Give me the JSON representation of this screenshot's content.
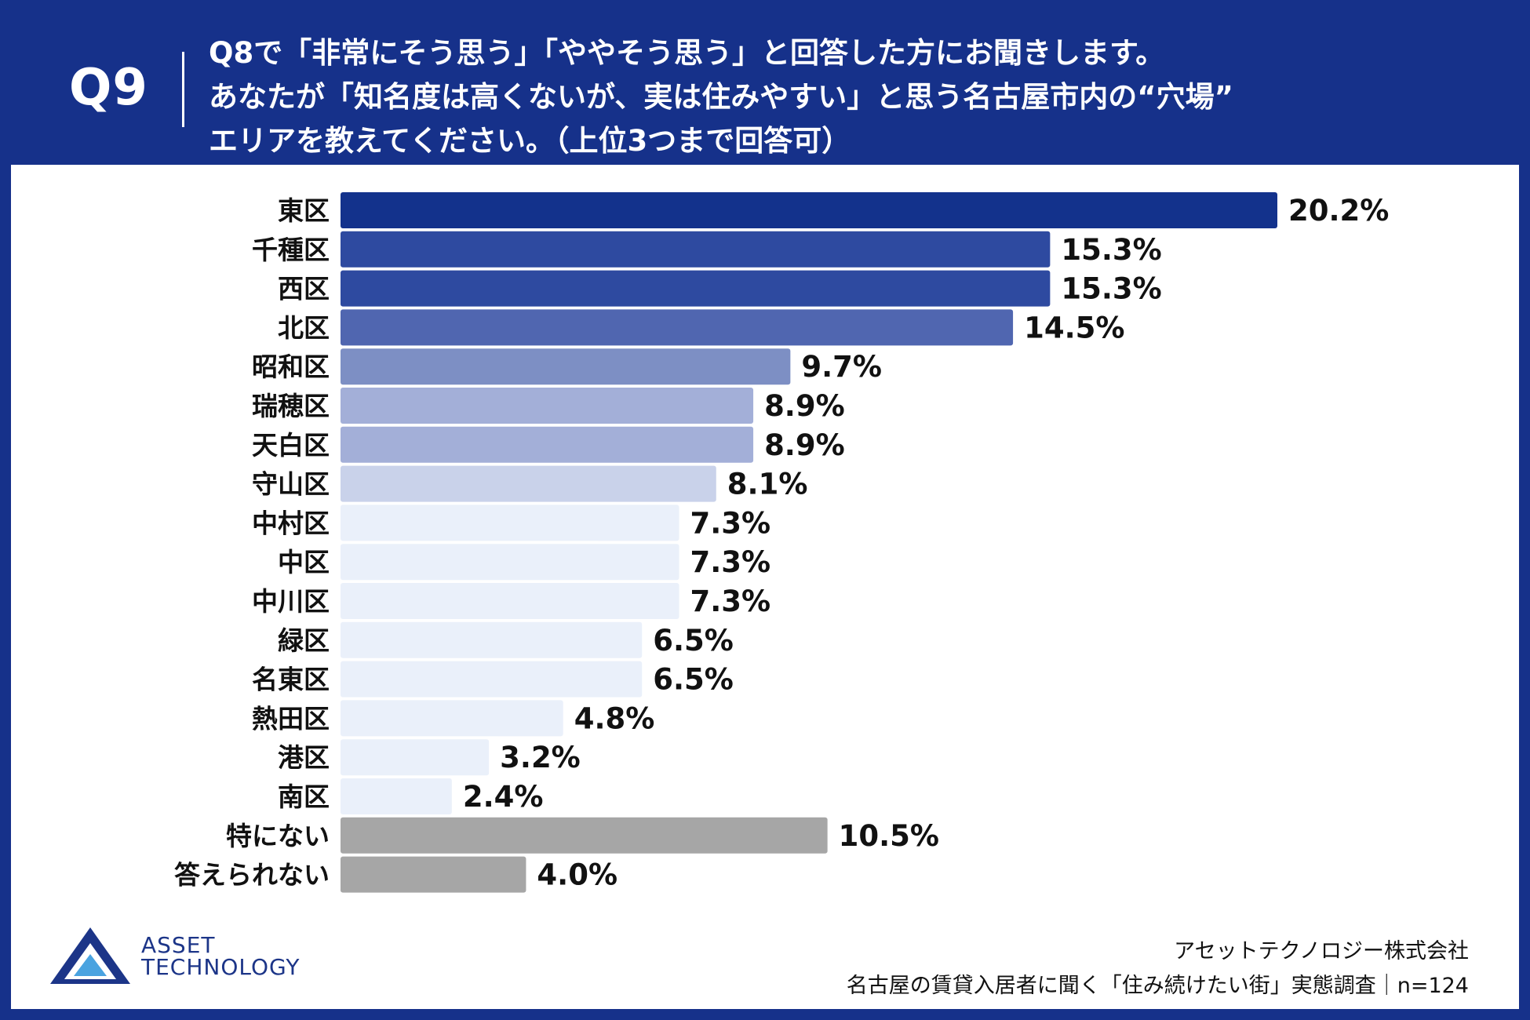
{
  "header": {
    "q_label": "Q9",
    "question_lines": [
      "Q8で「非常にそう思う」「ややそう思う」と回答した方にお聞きします。",
      "あなたが「知名度は高くないが、実は住みやすい」と思う名古屋市内の“穴場”",
      "エリアを教えてください。（上位3つまで回答可）"
    ]
  },
  "chart_data": {
    "type": "bar",
    "orientation": "horizontal",
    "categories": [
      "東区",
      "千種区",
      "西区",
      "北区",
      "昭和区",
      "瑞穂区",
      "天白区",
      "守山区",
      "中村区",
      "中区",
      "中川区",
      "緑区",
      "名東区",
      "熱田区",
      "港区",
      "南区",
      "特にない",
      "答えられない"
    ],
    "values": [
      20.2,
      15.3,
      15.3,
      14.5,
      9.7,
      8.9,
      8.9,
      8.1,
      7.3,
      7.3,
      7.3,
      6.5,
      6.5,
      4.8,
      3.2,
      2.4,
      10.5,
      4.0
    ],
    "value_labels": [
      "20.2%",
      "15.3%",
      "15.3%",
      "14.5%",
      "9.7%",
      "8.9%",
      "8.9%",
      "8.1%",
      "7.3%",
      "7.3%",
      "7.3%",
      "6.5%",
      "6.5%",
      "4.8%",
      "3.2%",
      "2.4%",
      "10.5%",
      "4.0%"
    ],
    "bar_colors": [
      "#13328c",
      "#2e4aa0",
      "#2e4aa0",
      "#5066b0",
      "#7d8fc4",
      "#a3afd8",
      "#a3afd8",
      "#c9d2ea",
      "#eaf0fa",
      "#eaf0fa",
      "#eaf0fa",
      "#eaf0fa",
      "#eaf0fa",
      "#eaf0fa",
      "#eaf0fa",
      "#eaf0fa",
      "#a6a6a6",
      "#a6a6a6"
    ],
    "xlim": [
      0,
      20.2
    ],
    "grid": false,
    "legend": "none"
  },
  "logo": {
    "line1": "ASSET",
    "line2": "TECHNOLOGY"
  },
  "footer": {
    "company": "アセットテクノロジー株式会社",
    "survey": "名古屋の賃貸入居者に聞く「住み続けたい街」実態調査｜n=124"
  },
  "colors": {
    "brand_navy": "#16318a",
    "panel_bg": "#ffffff",
    "text_dark": "#111111"
  }
}
